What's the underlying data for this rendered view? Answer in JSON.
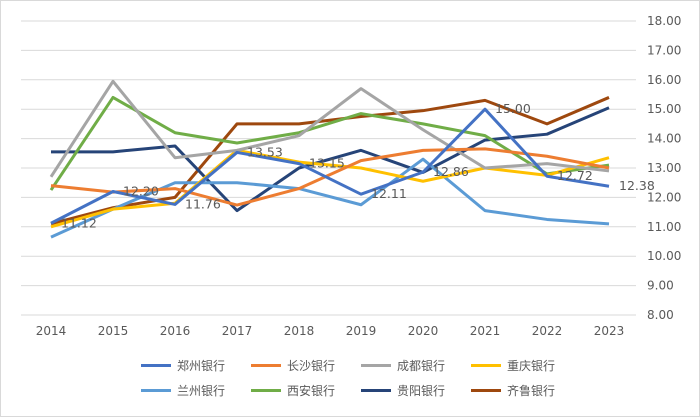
{
  "chart_data": {
    "type": "line",
    "x": [
      "2014",
      "2015",
      "2016",
      "2017",
      "2018",
      "2019",
      "2020",
      "2021",
      "2022",
      "2023"
    ],
    "ylim": [
      8,
      18
    ],
    "yticks": [
      "8.00",
      "9.00",
      "10.00",
      "11.00",
      "12.00",
      "13.00",
      "14.00",
      "15.00",
      "16.00",
      "17.00",
      "18.00"
    ],
    "y_axis_side": "right",
    "grid": true,
    "legend_position": "bottom",
    "series": [
      {
        "name": "郑州银行",
        "color": "#4472c4",
        "values": [
          11.12,
          12.2,
          11.76,
          13.53,
          13.15,
          12.11,
          12.86,
          15.0,
          12.72,
          12.38
        ],
        "labels": [
          "11.12",
          "12.20",
          "11.76",
          "13.53",
          "13.15",
          "12.11",
          "12.86",
          "15.00",
          "12.72",
          "12.38"
        ]
      },
      {
        "name": "长沙银行",
        "color": "#ed7d31",
        "values": [
          12.4,
          12.18,
          12.3,
          11.74,
          12.3,
          13.25,
          13.6,
          13.65,
          13.4,
          13.0
        ]
      },
      {
        "name": "成都银行",
        "color": "#a5a5a5",
        "values": [
          12.7,
          15.95,
          13.35,
          13.6,
          14.1,
          15.7,
          14.3,
          13.0,
          13.15,
          12.9
        ]
      },
      {
        "name": "重庆银行",
        "color": "#ffc000",
        "values": [
          11.0,
          11.6,
          11.8,
          13.6,
          13.2,
          13.0,
          12.55,
          13.0,
          12.75,
          13.35
        ]
      },
      {
        "name": "兰州银行",
        "color": "#5b9bd5",
        "values": [
          10.65,
          11.6,
          12.5,
          12.5,
          12.3,
          11.75,
          13.3,
          11.55,
          11.25,
          11.1
        ]
      },
      {
        "name": "西安银行",
        "color": "#70ad47",
        "values": [
          12.25,
          15.4,
          14.2,
          13.85,
          14.2,
          14.85,
          14.5,
          14.1,
          12.8,
          13.1
        ]
      },
      {
        "name": "贵阳银行",
        "color": "#264478",
        "values": [
          13.55,
          13.55,
          13.75,
          11.55,
          13.0,
          13.6,
          12.85,
          13.95,
          14.15,
          15.05
        ]
      },
      {
        "name": "齐鲁银行",
        "color": "#9e480e",
        "values": [
          11.1,
          11.65,
          12.0,
          14.5,
          14.5,
          14.75,
          14.95,
          15.3,
          14.5,
          15.4
        ]
      }
    ]
  }
}
